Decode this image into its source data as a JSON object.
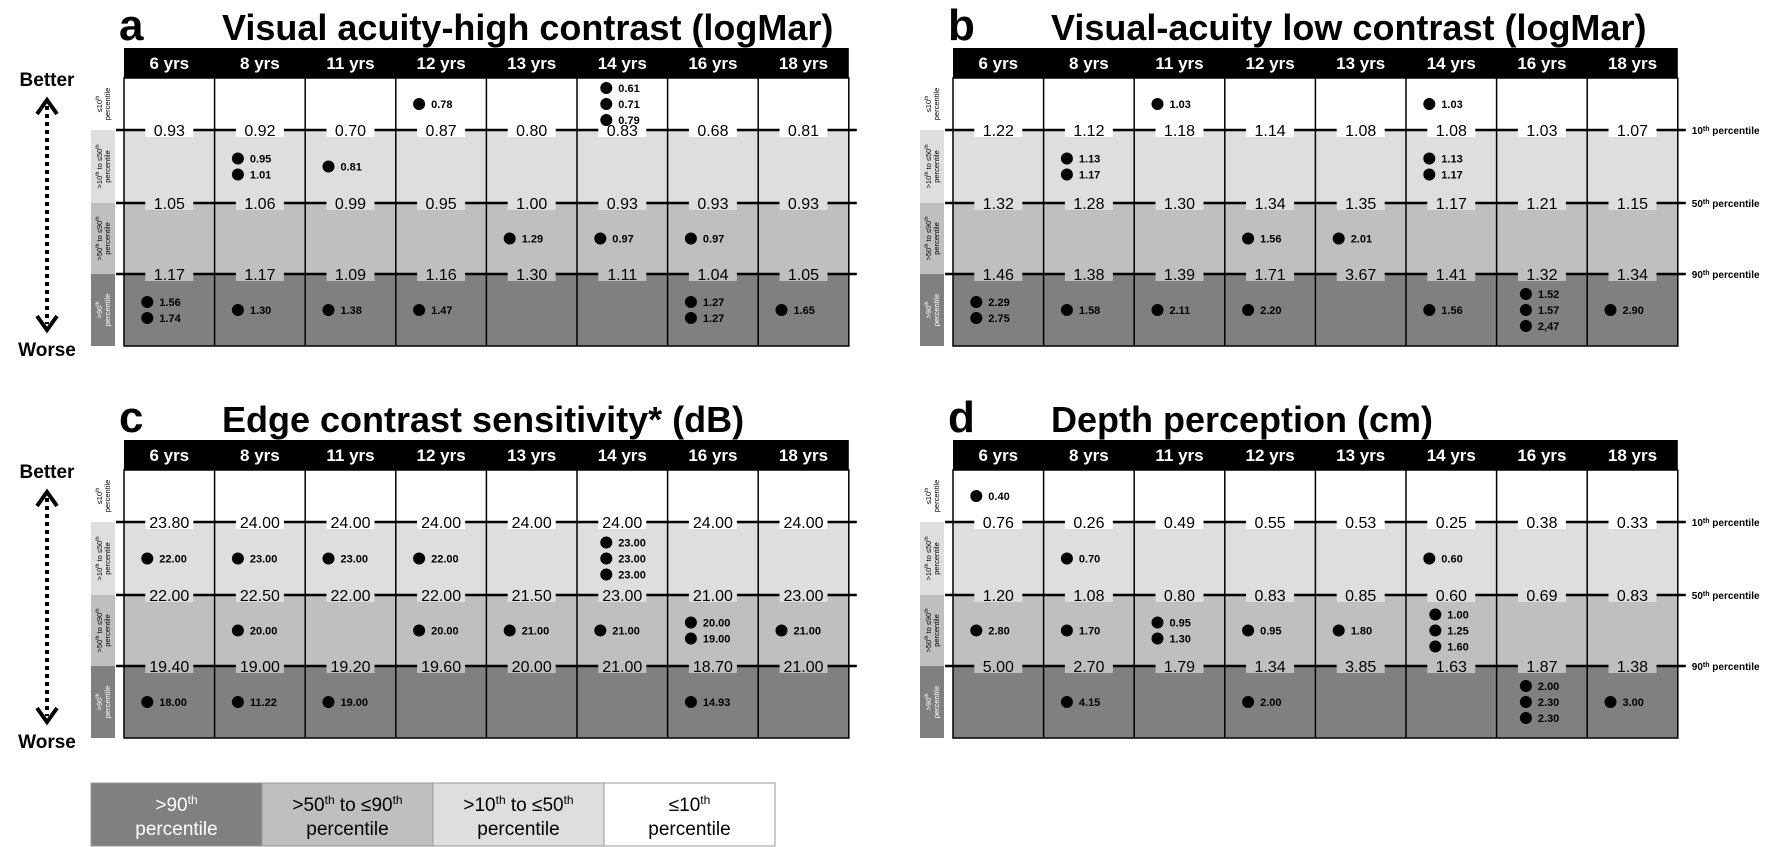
{
  "header": {
    "years": [
      "6 yrs",
      "8 yrs",
      "11 yrs",
      "12 yrs",
      "13 yrs",
      "14 yrs",
      "16 yrs",
      "18 yrs"
    ]
  },
  "axis": {
    "better_label": "Better",
    "worse_label": "Worse"
  },
  "band_labels": [
    {
      "lines": [
        "≤10th",
        "percentile"
      ]
    },
    {
      "lines": [
        ">10th to ≤50th",
        "percentile"
      ]
    },
    {
      "lines": [
        ">50th to ≤90th",
        "percentile"
      ]
    },
    {
      "lines": [
        ">90th",
        "percentile"
      ]
    }
  ],
  "percentile_line_labels": [
    "10th percentile",
    "50th percentile",
    "90th percentile"
  ],
  "legend": [
    {
      "label_lines": [
        ">90th",
        "percentile"
      ],
      "color": "#808080"
    },
    {
      "label_lines": [
        ">50th to ≤90th",
        "percentile"
      ],
      "color": "#bfbfbf"
    },
    {
      "label_lines": [
        ">10th to ≤50th",
        "percentile"
      ],
      "color": "#dedede"
    },
    {
      "label_lines": [
        "≤10th",
        "percentile"
      ],
      "color": "#ffffff"
    }
  ],
  "colors": {
    "band_top": "#ffffff",
    "band_10_50": "#dedede",
    "band_50_90": "#bfbfbf",
    "band_gt90": "#808080",
    "header": "#000000",
    "point": "#000000"
  },
  "chart_data": [
    {
      "id": "a",
      "panel_letter": "a",
      "type": "table",
      "title": "Visual acuity-high contrast (logMar)",
      "show_percentile_labels": false,
      "thresholds": {
        "p10": [
          "0.93",
          "0.92",
          "0.70",
          "0.87",
          "0.80",
          "0.83",
          "0.68",
          "0.81"
        ],
        "p50": [
          "1.05",
          "1.06",
          "0.99",
          "0.95",
          "1.00",
          "0.93",
          "0.93",
          "0.93"
        ],
        "p90": [
          "1.17",
          "1.17",
          "1.09",
          "1.16",
          "1.30",
          "1.11",
          "1.04",
          "1.05"
        ]
      },
      "points": [
        [
          [],
          [],
          [],
          [
            "0.78"
          ],
          [],
          [
            "0.61",
            "0.71",
            "0.79"
          ],
          [],
          []
        ],
        [
          [],
          [
            "0.95",
            "1.01"
          ],
          [
            "0.81"
          ],
          [],
          [],
          [],
          [],
          []
        ],
        [
          [],
          [],
          [],
          [],
          [
            "1.29"
          ],
          [
            "0.97"
          ],
          [
            "0.97"
          ],
          []
        ],
        [
          [
            "1.56",
            "1.74"
          ],
          [
            "1.30"
          ],
          [
            "1.38"
          ],
          [
            "1.47"
          ],
          [],
          [],
          [
            "1.27",
            "1.27"
          ],
          [
            "1.65"
          ]
        ]
      ]
    },
    {
      "id": "b",
      "panel_letter": "b",
      "type": "table",
      "title": "Visual-acuity low contrast (logMar)",
      "show_percentile_labels": true,
      "thresholds": {
        "p10": [
          "1.22",
          "1.12",
          "1.18",
          "1.14",
          "1.08",
          "1.08",
          "1.03",
          "1.07"
        ],
        "p50": [
          "1.32",
          "1.28",
          "1.30",
          "1.34",
          "1.35",
          "1.17",
          "1.21",
          "1.15"
        ],
        "p90": [
          "1.46",
          "1.38",
          "1.39",
          "1.71",
          "3.67",
          "1.41",
          "1.32",
          "1.34"
        ]
      },
      "points": [
        [
          [],
          [],
          [
            "1.03"
          ],
          [],
          [],
          [
            "1.03"
          ],
          [],
          []
        ],
        [
          [],
          [
            "1.13",
            "1.17"
          ],
          [],
          [],
          [],
          [
            "1.13",
            "1.17"
          ],
          [],
          []
        ],
        [
          [],
          [],
          [],
          [
            "1.56"
          ],
          [
            "2.01"
          ],
          [],
          [],
          []
        ],
        [
          [
            "2.29",
            "2.75"
          ],
          [
            "1.58"
          ],
          [
            "2.11"
          ],
          [
            "2.20"
          ],
          [],
          [
            "1.56"
          ],
          [
            "1.52",
            "1.57",
            "2,47"
          ],
          [
            "2.90"
          ]
        ]
      ]
    },
    {
      "id": "c",
      "panel_letter": "c",
      "type": "table",
      "title": "Edge contrast sensitivity* (dB)",
      "show_percentile_labels": false,
      "thresholds": {
        "p10": [
          "23.80",
          "24.00",
          "24.00",
          "24.00",
          "24.00",
          "24.00",
          "24.00",
          "24.00"
        ],
        "p50": [
          "22.00",
          "22.50",
          "22.00",
          "22.00",
          "21.50",
          "23.00",
          "21.00",
          "23.00"
        ],
        "p90": [
          "19.40",
          "19.00",
          "19.20",
          "19.60",
          "20.00",
          "21.00",
          "18.70",
          "21.00"
        ]
      },
      "points": [
        [
          [],
          [],
          [],
          [],
          [],
          [],
          [],
          []
        ],
        [
          [
            "22.00"
          ],
          [
            "23.00"
          ],
          [
            "23.00"
          ],
          [
            "22.00"
          ],
          [],
          [
            "23.00",
            "23.00",
            "23.00"
          ],
          [],
          []
        ],
        [
          [],
          [
            "20.00"
          ],
          [],
          [
            "20.00"
          ],
          [
            "21.00"
          ],
          [
            "21.00"
          ],
          [
            "20.00",
            "19.00"
          ],
          [
            "21.00"
          ]
        ],
        [
          [
            "18.00"
          ],
          [
            "11.22"
          ],
          [
            "19.00"
          ],
          [],
          [],
          [],
          [
            "14.93"
          ],
          []
        ]
      ]
    },
    {
      "id": "d",
      "panel_letter": "d",
      "type": "table",
      "title": "Depth perception (cm)",
      "show_percentile_labels": true,
      "thresholds": {
        "p10": [
          "0.76",
          "0.26",
          "0.49",
          "0.55",
          "0.53",
          "0.25",
          "0.38",
          "0.33"
        ],
        "p50": [
          "1.20",
          "1.08",
          "0.80",
          "0.83",
          "0.85",
          "0.60",
          "0.69",
          "0.83"
        ],
        "p90": [
          "5.00",
          "2.70",
          "1.79",
          "1.34",
          "3.85",
          "1.63",
          "1.87",
          "1.38"
        ]
      },
      "points": [
        [
          [
            "0.40"
          ],
          [],
          [],
          [],
          [],
          [],
          [],
          []
        ],
        [
          [],
          [
            "0.70"
          ],
          [],
          [],
          [],
          [
            "0.60"
          ],
          [],
          []
        ],
        [
          [
            "2.80"
          ],
          [
            "1.70"
          ],
          [
            "0.95",
            "1.30"
          ],
          [
            "0.95"
          ],
          [
            "1.80"
          ],
          [
            "1.00",
            "1.25",
            "1.60"
          ],
          [],
          []
        ],
        [
          [],
          [
            "4.15"
          ],
          [],
          [
            "2.00"
          ],
          [],
          [],
          [
            "2.00",
            "2.30",
            "2.30"
          ],
          [
            "3.00"
          ]
        ]
      ]
    }
  ]
}
